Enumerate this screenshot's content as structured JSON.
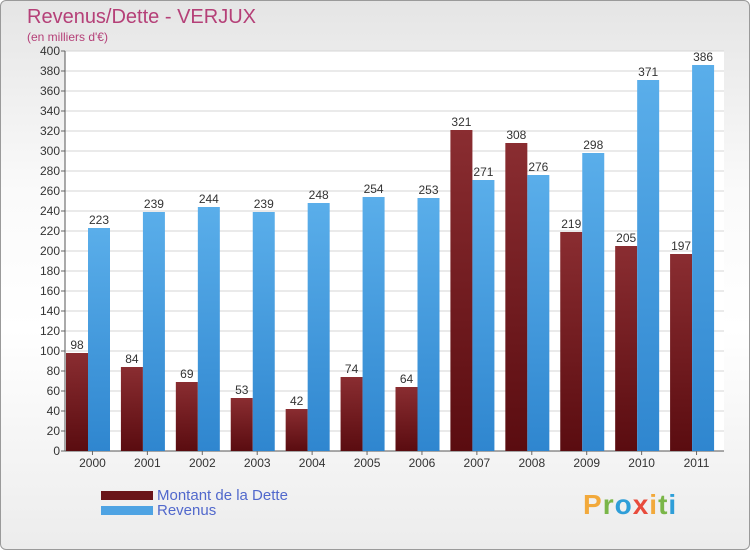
{
  "title": "Revenus/Dette - VERJUX",
  "subtitle": "(en milliers d'€)",
  "logo": {
    "letters": [
      "P",
      "r",
      "o",
      "x",
      "i",
      "t",
      "i"
    ],
    "colors": [
      "#f2a93b",
      "#7ab648",
      "#2f9ed8",
      "#e84b3c",
      "#f2a93b",
      "#7ab648",
      "#2f9ed8"
    ]
  },
  "chart_data": {
    "type": "bar",
    "categories": [
      "2000",
      "2001",
      "2002",
      "2003",
      "2004",
      "2005",
      "2006",
      "2007",
      "2008",
      "2009",
      "2010",
      "2011"
    ],
    "series": [
      {
        "name": "Montant de la Dette",
        "color": "#7a1e22",
        "values": [
          98,
          84,
          69,
          53,
          42,
          74,
          64,
          321,
          308,
          219,
          205,
          197
        ]
      },
      {
        "name": "Revenus",
        "color": "#4ea3e3",
        "values": [
          223,
          239,
          244,
          239,
          248,
          254,
          253,
          271,
          276,
          298,
          371,
          386
        ]
      }
    ],
    "ylim": [
      0,
      400
    ],
    "yticks": [
      0,
      20,
      40,
      60,
      80,
      100,
      120,
      140,
      160,
      180,
      200,
      220,
      240,
      260,
      280,
      300,
      320,
      340,
      360,
      380,
      400
    ],
    "grid": true,
    "legend_position": "bottom-left"
  }
}
